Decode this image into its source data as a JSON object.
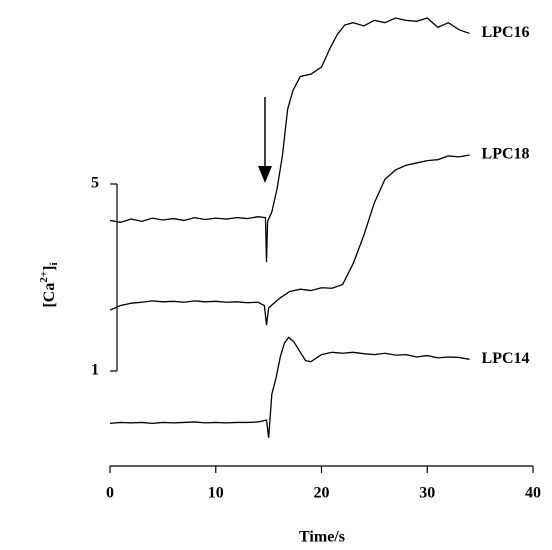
{
  "chart_data": {
    "type": "line",
    "ylabel": [
      "[Ca",
      "2+",
      "]",
      "i"
    ],
    "xlabel": "Time/s",
    "xlim": [
      0,
      40
    ],
    "xticks": [
      0,
      10,
      20,
      30,
      40
    ],
    "ylim": [
      -1,
      8.7
    ],
    "yticks": [
      1,
      5
    ],
    "color": "#000000",
    "series": [
      {
        "name": "LPC16",
        "x": [
          0,
          1,
          2,
          3,
          4,
          5,
          6,
          7,
          8,
          9,
          10,
          11,
          12,
          13,
          14,
          14.7,
          14.8,
          14.9,
          15.3,
          15.8,
          16.3,
          16.8,
          17.3,
          18,
          19,
          20,
          20.8,
          21.5,
          22.2,
          23,
          24,
          25,
          26,
          27,
          28,
          29,
          30,
          31,
          32,
          33,
          34
        ],
        "values": [
          4.22,
          4.18,
          4.25,
          4.2,
          4.27,
          4.23,
          4.26,
          4.22,
          4.28,
          4.24,
          4.27,
          4.25,
          4.28,
          4.26,
          4.3,
          4.28,
          3.33,
          4.2,
          4.4,
          4.9,
          5.6,
          6.6,
          7.0,
          7.3,
          7.35,
          7.5,
          7.9,
          8.2,
          8.4,
          8.45,
          8.38,
          8.5,
          8.45,
          8.55,
          8.5,
          8.48,
          8.55,
          8.35,
          8.45,
          8.3,
          8.22
        ]
      },
      {
        "name": "LPC18",
        "x": [
          0,
          1,
          2,
          3,
          4,
          5,
          6,
          7,
          8,
          9,
          10,
          11,
          12,
          13,
          14,
          14.6,
          14.8,
          15.0,
          15.5,
          16,
          17,
          18,
          19,
          20,
          21,
          22,
          23,
          24,
          25,
          26,
          27,
          28,
          29,
          30,
          31,
          32,
          33,
          34
        ],
        "values": [
          2.3,
          2.4,
          2.45,
          2.47,
          2.5,
          2.48,
          2.49,
          2.47,
          2.5,
          2.48,
          2.49,
          2.47,
          2.48,
          2.46,
          2.47,
          2.4,
          1.98,
          2.35,
          2.45,
          2.55,
          2.7,
          2.75,
          2.72,
          2.78,
          2.77,
          2.85,
          3.3,
          3.9,
          4.6,
          5.1,
          5.3,
          5.4,
          5.45,
          5.5,
          5.52,
          5.6,
          5.58,
          5.62
        ]
      },
      {
        "name": "LPC14",
        "x": [
          0,
          1,
          2,
          3,
          4,
          5,
          6,
          7,
          8,
          9,
          10,
          11,
          12,
          13,
          14,
          14.8,
          15.0,
          15.3,
          15.7,
          16.1,
          16.5,
          16.9,
          17.4,
          18,
          18.5,
          19,
          20,
          21,
          22,
          23,
          24,
          25,
          26,
          27,
          28,
          29,
          30,
          31,
          32,
          33,
          34
        ],
        "values": [
          -0.12,
          -0.1,
          -0.11,
          -0.1,
          -0.12,
          -0.1,
          -0.11,
          -0.1,
          -0.09,
          -0.11,
          -0.1,
          -0.11,
          -0.1,
          -0.1,
          -0.09,
          -0.05,
          -0.43,
          0.5,
          0.85,
          1.3,
          1.6,
          1.72,
          1.62,
          1.4,
          1.22,
          1.2,
          1.35,
          1.4,
          1.38,
          1.4,
          1.37,
          1.35,
          1.38,
          1.34,
          1.35,
          1.3,
          1.33,
          1.28,
          1.3,
          1.29,
          1.25
        ]
      }
    ]
  }
}
